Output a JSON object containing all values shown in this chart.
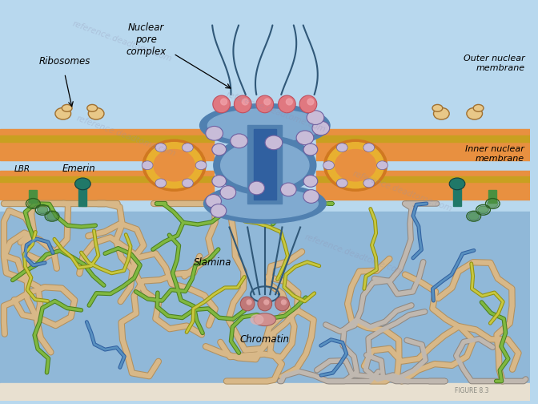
{
  "bg_top": "#b8d8ee",
  "bg_bottom": "#a8c8e8",
  "bg_nucleus": "#90b8d8",
  "membrane_orange": "#d4803a",
  "membrane_gold": "#c8a020",
  "membrane_fill": "#e89040",
  "pore_ring_orange": "#d07820",
  "pore_ring_gold": "#e8b030",
  "pore_body_blue": "#5080b0",
  "pore_body_light": "#80aad0",
  "pore_spoke_lavender": "#c8bcd8",
  "pore_spoke_outline": "#7060a0",
  "pore_pink": "#e07880",
  "pore_pink_light": "#f0a0a8",
  "filament_color": "#305878",
  "ribosome_fill": "#e8c888",
  "ribosome_outline": "#a07030",
  "lbr_green": "#4a9040",
  "emerin_teal": "#207868",
  "chromatin_beige": "#d8b888",
  "chromatin_outline": "#b09060",
  "chromatin_gray": "#c0b8b0",
  "chromatin_gray_outline": "#908880",
  "lamina_green": "#80b840",
  "lamina_yellow": "#c8c840",
  "lamina_blue": "#5890c0",
  "bottom_bar": "#e8e0d0",
  "caption_small": "#888880",
  "watermark_color": "#9090b0",
  "labels": {
    "nuclear_pore_complex": "Nuclear\npore\ncomplex",
    "ribosomes": "Ribosomes",
    "outer_membrane": "Outer nuclear\nmembrane",
    "inner_membrane": "Inner nuclear\nmembrane",
    "lbr": "LBR",
    "emerin": "Emerin",
    "lamina": "Slamina",
    "chromatin": "Chromatin"
  },
  "figure_caption": "FIGURE 8.3"
}
